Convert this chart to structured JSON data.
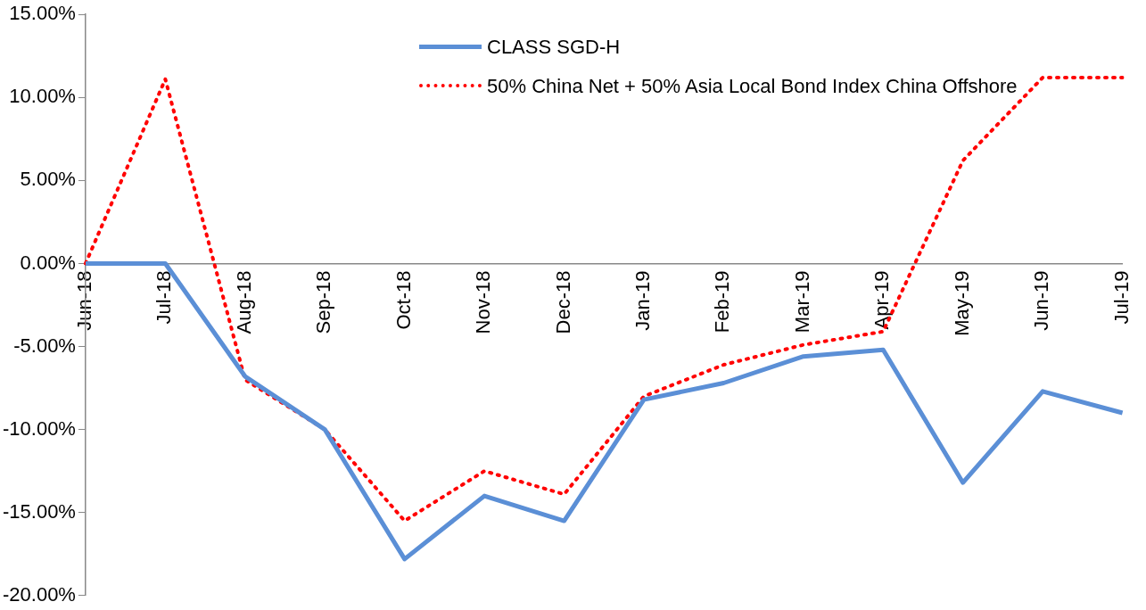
{
  "chart_data": {
    "type": "line",
    "categories": [
      "Jun-18",
      "Jul-18",
      "Aug-18",
      "Sep-18",
      "Oct-18",
      "Nov-18",
      "Dec-18",
      "Jan-19",
      "Feb-19",
      "Mar-19",
      "Apr-19",
      "May-19",
      "Jun-19",
      "Jul-19"
    ],
    "series": [
      {
        "name": "CLASS SGD-H",
        "color": "#5b8fd6",
        "line_style": "solid",
        "values": [
          0,
          0,
          -6.8,
          -10.0,
          -17.8,
          -14.0,
          -15.5,
          -8.2,
          -7.2,
          -5.6,
          -5.2,
          -13.2,
          -7.7,
          -9.0
        ]
      },
      {
        "name": "50% China Net + 50% Asia Local Bond Index China Offshore",
        "color": "#ff0000",
        "line_style": "dotted",
        "values": [
          0,
          11.1,
          -7.0,
          -10.0,
          -15.5,
          -12.5,
          -13.9,
          -8.0,
          -6.1,
          -4.9,
          -4.1,
          6.2,
          11.2,
          11.2
        ]
      }
    ],
    "ylim": [
      -20,
      15
    ],
    "yticks": [
      {
        "value": -20,
        "label": "-20.00%"
      },
      {
        "value": -15,
        "label": "-15.00%"
      },
      {
        "value": -10,
        "label": "-10.00%"
      },
      {
        "value": -5,
        "label": "-5.00%"
      },
      {
        "value": 0,
        "label": "0.00%"
      },
      {
        "value": 5,
        "label": "5.00%"
      },
      {
        "value": 10,
        "label": "10.00%"
      },
      {
        "value": 15,
        "label": "15.00%"
      }
    ],
    "grid": false,
    "legend": "top",
    "marker": "none"
  }
}
